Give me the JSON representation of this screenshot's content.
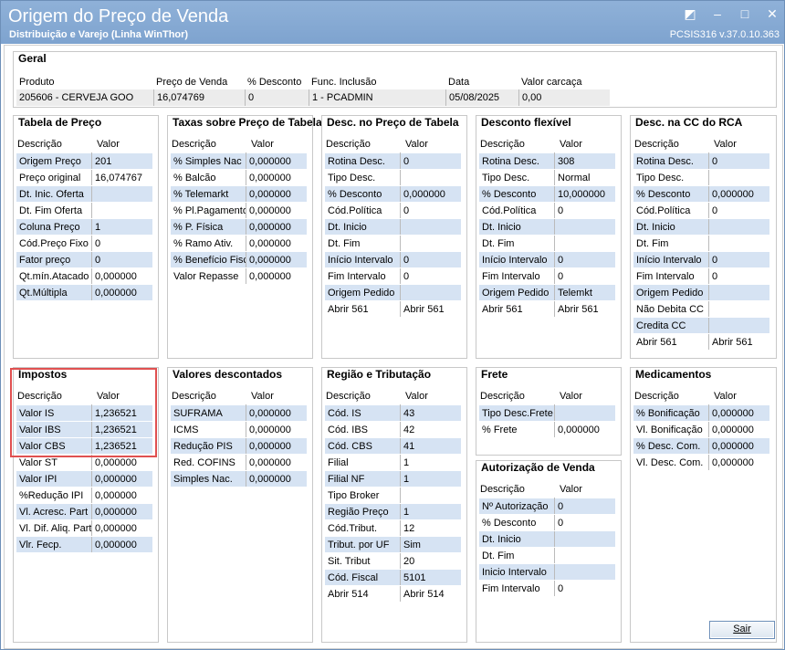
{
  "window": {
    "title": "Origem do Preço de Venda",
    "subtitle": "Distribuição e Varejo (Linha WinThor)",
    "version": "PCSIS316  v.37.0.10.363"
  },
  "geral": {
    "title": "Geral",
    "columns": [
      "Produto",
      "Preço de Venda",
      "% Desconto",
      "Func. Inclusão",
      "Data",
      "Valor carcaça"
    ],
    "values": [
      "205606 - CERVEJA GOO",
      "16,074769",
      "0",
      "1 - PCADMIN",
      "05/08/2025",
      "0,00"
    ]
  },
  "headers": {
    "descricao": "Descrição",
    "valor": "Valor"
  },
  "panels": {
    "tabela_preco": {
      "title": "Tabela de Preço",
      "rows": [
        [
          "Origem Preço",
          "201"
        ],
        [
          "Preço original",
          "16,074767"
        ],
        [
          "Dt. Inic. Oferta",
          ""
        ],
        [
          "Dt. Fim Oferta",
          ""
        ],
        [
          "Coluna Preço",
          "1"
        ],
        [
          "Cód.Preço Fixo",
          "0"
        ],
        [
          "Fator preço",
          "0"
        ],
        [
          "Qt.mín.Atacado",
          "0,000000"
        ],
        [
          "Qt.Múltipla",
          "0,000000"
        ]
      ]
    },
    "taxas": {
      "title": "Taxas sobre Preço de Tabela",
      "rows": [
        [
          "% Simples Nac",
          "0,000000"
        ],
        [
          "% Balcão",
          "0,000000"
        ],
        [
          "% Telemarkt",
          "0,000000"
        ],
        [
          "% Pl.Pagamento",
          "0,000000"
        ],
        [
          "% P. Física",
          "0,000000"
        ],
        [
          "% Ramo Ativ.",
          "0,000000"
        ],
        [
          "% Benefício Fisc",
          "0,000000"
        ],
        [
          "Valor Repasse",
          "0,000000"
        ]
      ]
    },
    "desc_preco_tabela": {
      "title": "Desc. no Preço de Tabela",
      "rows": [
        [
          "Rotina Desc.",
          "0"
        ],
        [
          "Tipo Desc.",
          ""
        ],
        [
          "% Desconto",
          "0,000000"
        ],
        [
          "Cód.Política",
          "0"
        ],
        [
          "Dt. Inicio",
          ""
        ],
        [
          "Dt. Fim",
          ""
        ],
        [
          "Início Intervalo",
          "0"
        ],
        [
          "Fim Intervalo",
          "0"
        ],
        [
          "Origem  Pedido",
          ""
        ],
        [
          "Abrir 561",
          "Abrir 561"
        ]
      ]
    },
    "desconto_flexivel": {
      "title": "Desconto flexível",
      "rows": [
        [
          "Rotina Desc.",
          "308"
        ],
        [
          "Tipo Desc.",
          "Normal"
        ],
        [
          "% Desconto",
          "10,000000"
        ],
        [
          "Cód.Política",
          "0"
        ],
        [
          "Dt. Inicio",
          ""
        ],
        [
          "Dt. Fim",
          ""
        ],
        [
          "Início Intervalo",
          "0"
        ],
        [
          "Fim Intervalo",
          "0"
        ],
        [
          "Origem  Pedido",
          "Telemkt"
        ],
        [
          "Abrir 561",
          "Abrir 561"
        ]
      ]
    },
    "desc_cc_rca": {
      "title": "Desc. na CC do RCA",
      "rows": [
        [
          "Rotina Desc.",
          "0"
        ],
        [
          "Tipo Desc.",
          ""
        ],
        [
          "% Desconto",
          "0,000000"
        ],
        [
          "Cód.Política",
          "0"
        ],
        [
          "Dt. Inicio",
          ""
        ],
        [
          "Dt. Fim",
          ""
        ],
        [
          "Início Intervalo",
          "0"
        ],
        [
          "Fim Intervalo",
          "0"
        ],
        [
          "Origem  Pedido",
          ""
        ],
        [
          "Não Debita CC",
          ""
        ],
        [
          "Credita CC",
          ""
        ],
        [
          "Abrir 561",
          "Abrir 561"
        ]
      ]
    },
    "impostos": {
      "title": "Impostos",
      "rows": [
        [
          "Valor IS",
          "1,236521"
        ],
        [
          "Valor IBS",
          "1,236521"
        ],
        [
          "Valor CBS",
          "1,236521"
        ],
        [
          "Valor ST",
          "0,000000"
        ],
        [
          "Valor IPI",
          "0,000000"
        ],
        [
          "%Redução IPI",
          "0,000000"
        ],
        [
          "Vl. Acresc. Part",
          "0,000000"
        ],
        [
          "Vl. Dif. Aliq. Part",
          "0,000000"
        ],
        [
          "Vlr. Fecp.",
          "0,000000"
        ]
      ]
    },
    "valores_descontados": {
      "title": "Valores descontados",
      "rows": [
        [
          "SUFRAMA",
          "0,000000"
        ],
        [
          "ICMS",
          "0,000000"
        ],
        [
          "Redução PIS",
          "0,000000"
        ],
        [
          "Red. COFINS",
          "0,000000"
        ],
        [
          "Simples Nac.",
          "0,000000"
        ]
      ]
    },
    "regiao_tributacao": {
      "title": "Região e Tributação",
      "rows": [
        [
          "Cód. IS",
          "43"
        ],
        [
          "Cód. IBS",
          "42"
        ],
        [
          "Cód. CBS",
          "41"
        ],
        [
          "Filial",
          "1"
        ],
        [
          "Filial NF",
          "1"
        ],
        [
          "Tipo Broker",
          ""
        ],
        [
          "Região Preço",
          "1"
        ],
        [
          "Cód.Tribut.",
          "12"
        ],
        [
          "Tribut. por UF",
          "Sim"
        ],
        [
          "Sit. Tribut",
          "20"
        ],
        [
          "Cód. Fiscal",
          "5101"
        ],
        [
          "Abrir 514",
          "Abrir 514"
        ]
      ]
    },
    "frete": {
      "title": "Frete",
      "rows": [
        [
          "Tipo Desc.Frete",
          ""
        ],
        [
          "% Frete",
          "0,000000"
        ]
      ]
    },
    "autorizacao_venda": {
      "title": "Autorização de Venda",
      "rows": [
        [
          "Nº Autorização",
          "0"
        ],
        [
          "% Desconto",
          "0"
        ],
        [
          "Dt. Inicio",
          ""
        ],
        [
          "Dt. Fim",
          ""
        ],
        [
          "Inicio Intervalo",
          ""
        ],
        [
          "Fim Intervalo",
          "0"
        ]
      ]
    },
    "medicamentos": {
      "title": "Medicamentos",
      "rows": [
        [
          "% Bonificação",
          "0,000000"
        ],
        [
          "Vl. Bonificação",
          "0,000000"
        ],
        [
          "% Desc. Com.",
          "0,000000"
        ],
        [
          "Vl. Desc. Com.",
          "0,000000"
        ]
      ]
    }
  },
  "buttons": {
    "sair": "Sair"
  }
}
